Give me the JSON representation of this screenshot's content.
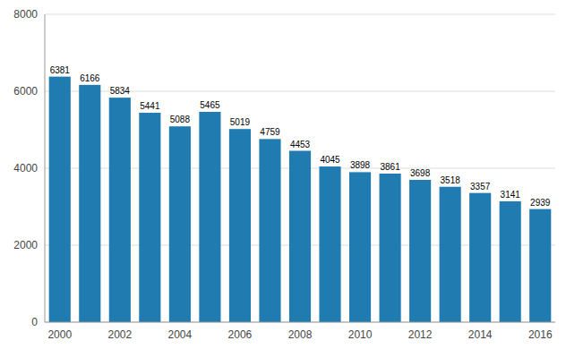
{
  "chart_data": {
    "type": "bar",
    "categories": [
      "2000",
      null,
      "2002",
      null,
      "2004",
      null,
      "2006",
      null,
      "2008",
      null,
      "2010",
      null,
      "2012",
      null,
      "2014",
      null,
      "2016"
    ],
    "values": [
      6381,
      6166,
      5834,
      5441,
      5088,
      5465,
      5019,
      4759,
      4453,
      4045,
      3898,
      3861,
      3698,
      3518,
      3357,
      3141,
      2939
    ],
    "color": "#1f7bb0",
    "ylim": [
      0,
      8000
    ],
    "yticks": [
      0,
      2000,
      4000,
      6000,
      8000
    ],
    "grid": true,
    "data_labels": true
  }
}
